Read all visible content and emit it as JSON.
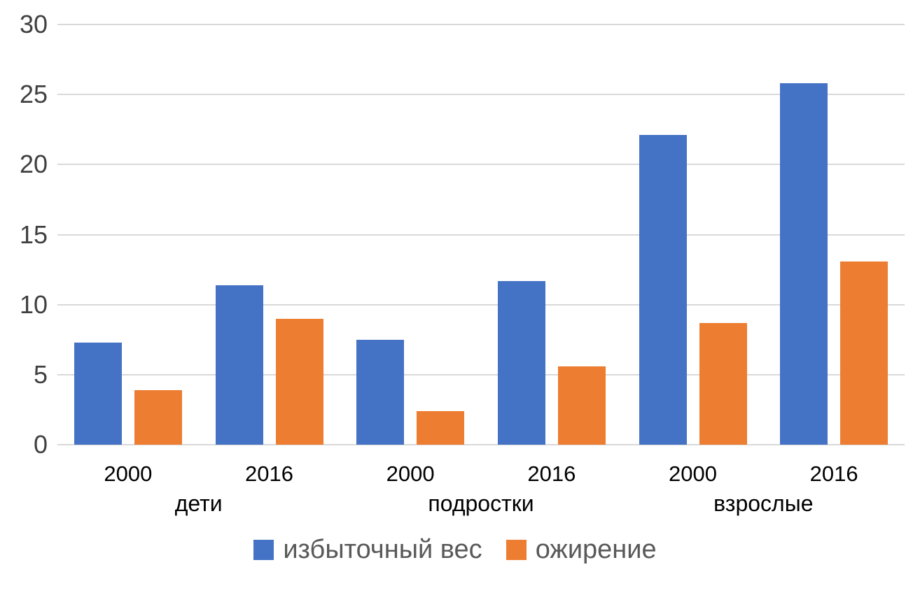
{
  "chart_data": {
    "type": "bar",
    "title": "",
    "xlabel": "",
    "ylabel": "",
    "ylim": [
      0,
      30
    ],
    "yticks": [
      0,
      5,
      10,
      15,
      20,
      25,
      30
    ],
    "grid": true,
    "legend_position": "bottom",
    "group_labels": [
      "дети",
      "подростки",
      "взрослые"
    ],
    "categories": [
      "2000",
      "2016",
      "2000",
      "2016",
      "2000",
      "2016"
    ],
    "series": [
      {
        "name": "избыточный вес",
        "color": "#4472C4",
        "values": [
          7.3,
          11.4,
          7.5,
          11.7,
          22.1,
          25.8
        ]
      },
      {
        "name": "ожирение",
        "color": "#ED7D31",
        "values": [
          3.9,
          9.0,
          2.4,
          5.6,
          8.7,
          13.1
        ]
      }
    ],
    "colors": {
      "gridline": "#d9d9d9",
      "y_label": "#404040",
      "x_label": "#000000",
      "legend_text": "#595959",
      "background": "#ffffff"
    }
  }
}
